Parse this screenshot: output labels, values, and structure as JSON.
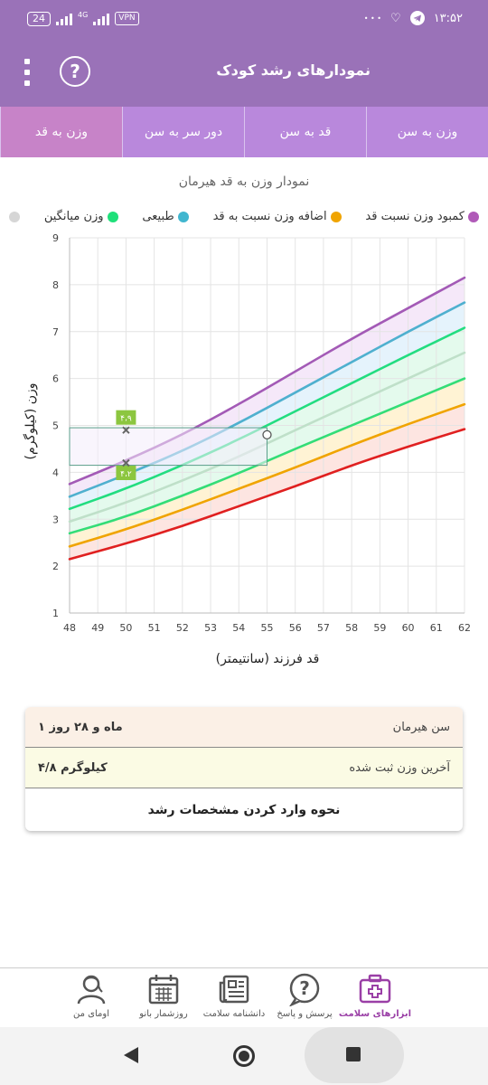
{
  "status_bar": {
    "battery": "24",
    "network": "4G",
    "vpn": "VPN",
    "time": "۱۳:۵۲",
    "more": "• • •"
  },
  "app_bar": {
    "title": "نمودارهای رشد کودک",
    "help": "?"
  },
  "tabs": [
    {
      "label": "وزن به سن",
      "active": false
    },
    {
      "label": "قد به سن",
      "active": false
    },
    {
      "label": "دور سر به سن",
      "active": false
    },
    {
      "label": "وزن به قد",
      "active": true
    }
  ],
  "chart_title": "نمودار وزن به قد هیرمان",
  "legend": [
    {
      "label": "کمبود وزن نسبت قد",
      "color": "#b05ab8"
    },
    {
      "label": "اضافه وزن نسبت به قد",
      "color": "#f0a400"
    },
    {
      "label": "طبیعی",
      "color": "#41b6cf"
    },
    {
      "label": "وزن میانگین",
      "color": "#1fe07a"
    },
    {
      "label": "",
      "color": "#d6d6d6"
    }
  ],
  "legend_labels_order": [
    "کمبود وزن نسبت قد",
    "اضافه وزن نسبت به قد",
    "طبیعی",
    "وزن میانگین"
  ],
  "chart_data": {
    "type": "line",
    "xlabel": "قد فرزند (سانتیمتر)",
    "ylabel": "وزن (کیلوگرم)",
    "xlim": [
      48,
      62
    ],
    "ylim": [
      1,
      9
    ],
    "x_ticks": [
      48,
      49,
      50,
      51,
      52,
      53,
      54,
      55,
      56,
      57,
      58,
      59,
      60,
      61,
      62
    ],
    "y_ticks": [
      1,
      2,
      3,
      4,
      5,
      6,
      7,
      8,
      9
    ],
    "x": [
      48,
      50,
      52,
      54,
      56,
      58,
      60,
      62
    ],
    "series": [
      {
        "color": "#a35ab6",
        "values": [
          3.75,
          4.25,
          4.8,
          5.45,
          6.15,
          6.85,
          7.5,
          8.15
        ]
      },
      {
        "color": "#4fb0cf",
        "values": [
          3.48,
          3.95,
          4.45,
          5.05,
          5.7,
          6.35,
          7.0,
          7.62
        ]
      },
      {
        "color": "#22dd80",
        "values": [
          3.22,
          3.65,
          4.15,
          4.7,
          5.3,
          5.9,
          6.5,
          7.08
        ]
      },
      {
        "color": "#bfe0c9",
        "values": [
          2.95,
          3.35,
          3.82,
          4.33,
          4.9,
          5.45,
          6.0,
          6.55
        ]
      },
      {
        "color": "#33dd77",
        "values": [
          2.7,
          3.05,
          3.5,
          3.98,
          4.5,
          5.0,
          5.5,
          6.0
        ]
      },
      {
        "color": "#f0a400",
        "values": [
          2.42,
          2.78,
          3.2,
          3.65,
          4.1,
          4.58,
          5.03,
          5.45
        ]
      },
      {
        "color": "#e02020",
        "values": [
          2.15,
          2.48,
          2.85,
          3.28,
          3.7,
          4.15,
          4.55,
          4.92
        ]
      }
    ],
    "fills": [
      {
        "color": "#f3e4f8"
      },
      {
        "color": "#e0f1fb"
      },
      {
        "color": "#dff9ea"
      },
      {
        "color": "#dff9ea"
      },
      {
        "color": "#fff1cc"
      },
      {
        "color": "#fde0dc"
      }
    ],
    "marker": {
      "x": 55,
      "y": 4.8
    },
    "range_box": {
      "x0": 48,
      "x1": 55,
      "y0": 4.15,
      "y1": 4.95,
      "color": "#5a9e8a"
    },
    "range_labels": [
      {
        "x": 50,
        "y": 4.9,
        "text": "۴،۹"
      },
      {
        "x": 50,
        "y": 4.2,
        "text": "۴،۲"
      }
    ]
  },
  "info_card": {
    "age_label": "سن هیرمان",
    "age_value": "۱ ماه و ۲۸ روز",
    "weight_label": "آخرین وزن ثبت شده",
    "weight_value": "۴/۸ کیلوگرم",
    "howto": "نحوه وارد کردن مشخصات رشد"
  },
  "bottom_nav": [
    {
      "label": "ابزارهای سلامت",
      "icon": "medical-kit-icon",
      "active": true
    },
    {
      "label": "پرسش و پاسخ",
      "icon": "question-bubble-icon",
      "active": false
    },
    {
      "label": "دانشنامه سلامت",
      "icon": "newspaper-icon",
      "active": false
    },
    {
      "label": "روزشمار بانو",
      "icon": "calendar-icon",
      "active": false
    },
    {
      "label": "اومای من",
      "icon": "user-avatar-icon",
      "active": false
    }
  ]
}
